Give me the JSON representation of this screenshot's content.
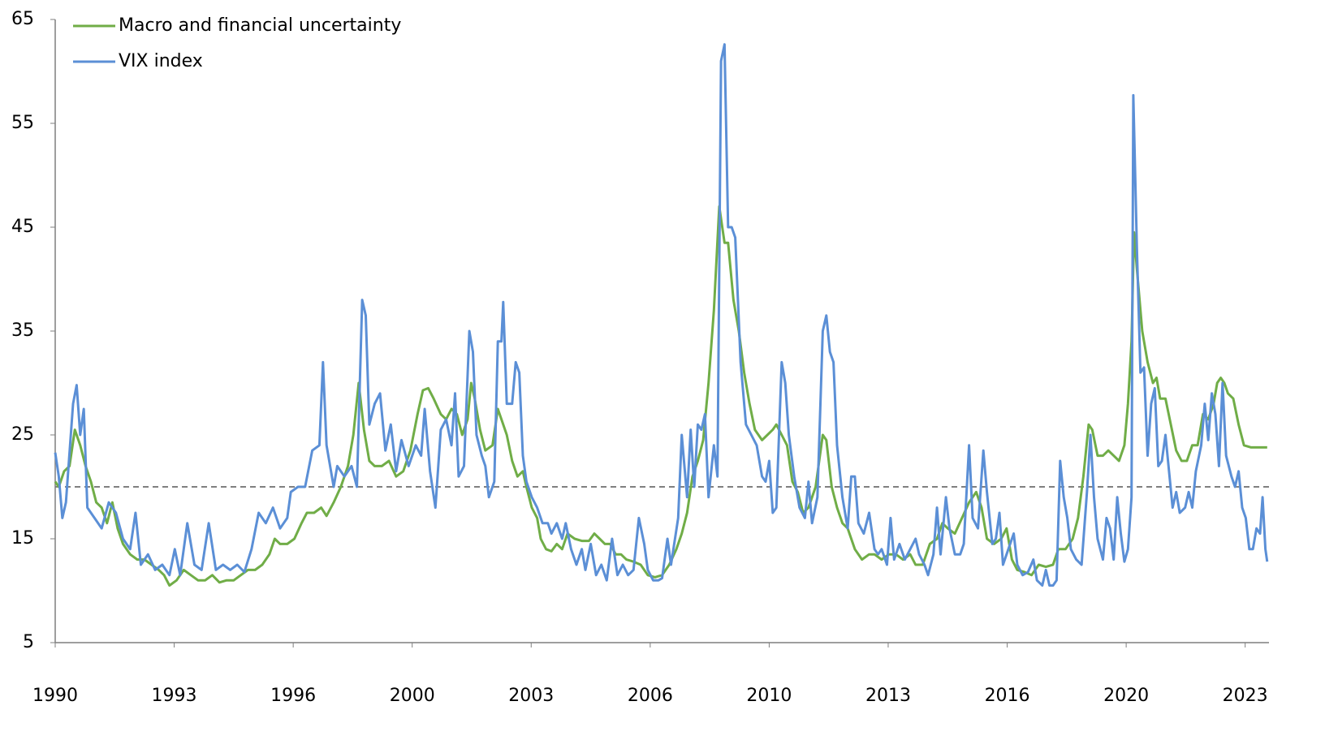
{
  "chart_data": {
    "type": "line",
    "xlim": [
      1990,
      2024
    ],
    "ylim": [
      5,
      65
    ],
    "yticks": [
      5,
      15,
      25,
      35,
      45,
      55,
      65
    ],
    "xticks": [
      1990,
      {
        "value": 1993.333,
        "label": "1993"
      },
      {
        "value": 1996.667,
        "label": "1996"
      },
      2000,
      {
        "value": 2003.333,
        "label": "2003"
      },
      {
        "value": 2006.667,
        "label": "2006"
      },
      2010,
      {
        "value": 2013.333,
        "label": "2013"
      },
      {
        "value": 2016.667,
        "label": "2016"
      },
      2020,
      {
        "value": 2023.333,
        "label": "2023"
      }
    ],
    "reference_line": 20,
    "legend": "top-left",
    "series": [
      {
        "name": "Macro and financial uncertainty",
        "color": "#70ad47",
        "x": [
          1990.0,
          1990.1,
          1990.25,
          1990.4,
          1990.55,
          1990.7,
          1990.85,
          1991.0,
          1991.15,
          1991.3,
          1991.45,
          1991.6,
          1991.75,
          1991.9,
          1992.1,
          1992.3,
          1992.5,
          1992.7,
          1992.9,
          1993.05,
          1993.2,
          1993.4,
          1993.6,
          1993.8,
          1994.0,
          1994.2,
          1994.4,
          1994.6,
          1994.8,
          1995.0,
          1995.2,
          1995.4,
          1995.6,
          1995.8,
          1996.0,
          1996.15,
          1996.3,
          1996.5,
          1996.7,
          1996.9,
          1997.05,
          1997.25,
          1997.45,
          1997.6,
          1997.8,
          1998.0,
          1998.2,
          1998.35,
          1998.5,
          1998.65,
          1998.8,
          1998.95,
          1999.15,
          1999.35,
          1999.55,
          1999.75,
          1999.95,
          2000.15,
          2000.3,
          2000.45,
          2000.6,
          2000.8,
          2000.95,
          2001.1,
          2001.25,
          2001.4,
          2001.55,
          2001.65,
          2001.75,
          2001.9,
          2002.05,
          2002.25,
          2002.4,
          2002.5,
          2002.65,
          2002.8,
          2002.95,
          2003.1,
          2003.2,
          2003.35,
          2003.5,
          2003.6,
          2003.75,
          2003.9,
          2004.05,
          2004.2,
          2004.35,
          2004.55,
          2004.75,
          2004.95,
          2005.1,
          2005.25,
          2005.4,
          2005.55,
          2005.7,
          2005.85,
          2006.0,
          2006.2,
          2006.4,
          2006.6,
          2006.8,
          2007.0,
          2007.2,
          2007.4,
          2007.55,
          2007.7,
          2007.85,
          2008.0,
          2008.15,
          2008.3,
          2008.45,
          2008.6,
          2008.75,
          2008.85,
          2009.0,
          2009.15,
          2009.3,
          2009.45,
          2009.6,
          2009.8,
          2009.95,
          2010.1,
          2010.2,
          2010.35,
          2010.5,
          2010.65,
          2010.8,
          2010.95,
          2011.1,
          2011.3,
          2011.5,
          2011.6,
          2011.75,
          2011.9,
          2012.05,
          2012.2,
          2012.4,
          2012.6,
          2012.8,
          2012.95,
          2013.15,
          2013.35,
          2013.55,
          2013.75,
          2013.95,
          2014.1,
          2014.3,
          2014.5,
          2014.7,
          2014.85,
          2015.0,
          2015.2,
          2015.4,
          2015.6,
          2015.8,
          2015.95,
          2016.1,
          2016.3,
          2016.5,
          2016.65,
          2016.8,
          2016.95,
          2017.15,
          2017.35,
          2017.55,
          2017.75,
          2017.95,
          2018.1,
          2018.3,
          2018.5,
          2018.65,
          2018.8,
          2018.95,
          2019.05,
          2019.2,
          2019.35,
          2019.5,
          2019.65,
          2019.8,
          2019.95,
          2020.05,
          2020.15,
          2020.22,
          2020.3,
          2020.45,
          2020.6,
          2020.75,
          2020.85,
          2020.95,
          2021.1,
          2021.25,
          2021.4,
          2021.55,
          2021.7,
          2021.85,
          2022.0,
          2022.15,
          2022.3,
          2022.45,
          2022.55,
          2022.65,
          2022.75,
          2022.85,
          2023.0,
          2023.15,
          2023.3,
          2023.5,
          2023.95
        ],
        "values": [
          20.5,
          20,
          21.5,
          22,
          25.5,
          24,
          22,
          20.5,
          18.5,
          18,
          16.5,
          18.5,
          16,
          14.5,
          13.5,
          13,
          13,
          12.5,
          12,
          11.5,
          10.5,
          11,
          12,
          11.5,
          11,
          11,
          11.5,
          10.8,
          11,
          11,
          11.5,
          12,
          12,
          12.5,
          13.5,
          15,
          14.5,
          14.5,
          15,
          16.5,
          17.5,
          17.5,
          18,
          17.2,
          18.5,
          20,
          22,
          25,
          30,
          25.5,
          22.5,
          22,
          22,
          22.5,
          21,
          21.5,
          23.5,
          27,
          29.3,
          29.5,
          28.5,
          27,
          26.5,
          27.5,
          27,
          25,
          26.5,
          30,
          28.5,
          25.5,
          23.5,
          24,
          27.5,
          26.5,
          25,
          22.5,
          21,
          21.5,
          20,
          18,
          17,
          15,
          14,
          13.8,
          14.5,
          14,
          15.5,
          15,
          14.8,
          14.8,
          15.5,
          15,
          14.5,
          14.5,
          13.5,
          13.5,
          13,
          12.8,
          12.5,
          11.5,
          11.3,
          11.5,
          12.5,
          14,
          15.5,
          17.5,
          21,
          22.5,
          24.5,
          30,
          37,
          47,
          43.5,
          43.5,
          38,
          35,
          31,
          28,
          25.5,
          24.5,
          25,
          25.5,
          26,
          25,
          24,
          20.5,
          19.5,
          17.5,
          18,
          20,
          25,
          24.5,
          20,
          18,
          16.5,
          16,
          14,
          13,
          13.5,
          13.5,
          13,
          13.5,
          13.5,
          13,
          13.5,
          12.5,
          12.5,
          14.5,
          15,
          16.5,
          16,
          15.5,
          17,
          18.5,
          19.5,
          18,
          15,
          14.5,
          15,
          16,
          13,
          12,
          11.8,
          11.5,
          12.5,
          12.3,
          12.5,
          14,
          14,
          15,
          17,
          21,
          26,
          25.5,
          23,
          23,
          23.5,
          23,
          22.5,
          24,
          28,
          34,
          44.5,
          41,
          35,
          32,
          30,
          30.5,
          28.5,
          28.5,
          26,
          23.5,
          22.5,
          22.5,
          24,
          24,
          27,
          26.5,
          28,
          30,
          30.5,
          30,
          29,
          28.5,
          26,
          24,
          23.8,
          23.8
        ]
      },
      {
        "name": "VIX index",
        "color": "#5b8fd6",
        "x": [
          1990.0,
          1990.1,
          1990.2,
          1990.3,
          1990.5,
          1990.6,
          1990.7,
          1990.8,
          1990.9,
          1991.1,
          1991.3,
          1991.5,
          1991.7,
          1991.9,
          1992.1,
          1992.25,
          1992.4,
          1992.6,
          1992.8,
          1993.0,
          1993.2,
          1993.35,
          1993.5,
          1993.7,
          1993.9,
          1994.1,
          1994.3,
          1994.5,
          1994.7,
          1994.9,
          1995.1,
          1995.3,
          1995.5,
          1995.7,
          1995.9,
          1996.1,
          1996.3,
          1996.5,
          1996.6,
          1996.8,
          1997.0,
          1997.2,
          1997.4,
          1997.5,
          1997.6,
          1997.8,
          1997.9,
          1998.1,
          1998.3,
          1998.45,
          1998.6,
          1998.7,
          1998.8,
          1998.95,
          1999.1,
          1999.25,
          1999.4,
          1999.55,
          1999.7,
          1999.9,
          2000.1,
          2000.25,
          2000.35,
          2000.5,
          2000.65,
          2000.8,
          2000.95,
          2001.1,
          2001.2,
          2001.3,
          2001.45,
          2001.6,
          2001.7,
          2001.8,
          2001.95,
          2002.05,
          2002.15,
          2002.3,
          2002.4,
          2002.5,
          2002.55,
          2002.65,
          2002.8,
          2002.9,
          2003.0,
          2003.1,
          2003.2,
          2003.35,
          2003.5,
          2003.65,
          2003.8,
          2003.9,
          2004.05,
          2004.2,
          2004.3,
          2004.45,
          2004.6,
          2004.75,
          2004.85,
          2005.0,
          2005.15,
          2005.3,
          2005.45,
          2005.6,
          2005.75,
          2005.9,
          2006.05,
          2006.2,
          2006.35,
          2006.5,
          2006.6,
          2006.75,
          2006.9,
          2007.0,
          2007.15,
          2007.25,
          2007.45,
          2007.55,
          2007.7,
          2007.8,
          2007.9,
          2008.0,
          2008.1,
          2008.2,
          2008.3,
          2008.45,
          2008.55,
          2008.65,
          2008.75,
          2008.85,
          2008.95,
          2009.05,
          2009.2,
          2009.35,
          2009.5,
          2009.65,
          2009.8,
          2009.9,
          2010.0,
          2010.1,
          2010.2,
          2010.35,
          2010.45,
          2010.55,
          2010.7,
          2010.85,
          2011.0,
          2011.1,
          2011.2,
          2011.35,
          2011.5,
          2011.6,
          2011.7,
          2011.8,
          2011.9,
          2012.05,
          2012.2,
          2012.3,
          2012.4,
          2012.5,
          2012.65,
          2012.8,
          2012.95,
          2013.05,
          2013.15,
          2013.3,
          2013.4,
          2013.5,
          2013.65,
          2013.8,
          2013.95,
          2014.1,
          2014.2,
          2014.35,
          2014.45,
          2014.6,
          2014.7,
          2014.8,
          2014.95,
          2015.05,
          2015.2,
          2015.35,
          2015.45,
          2015.6,
          2015.7,
          2015.85,
          2016.0,
          2016.1,
          2016.25,
          2016.35,
          2016.45,
          2016.55,
          2016.7,
          2016.85,
          2016.95,
          2017.1,
          2017.25,
          2017.4,
          2017.5,
          2017.65,
          2017.75,
          2017.85,
          2017.95,
          2018.05,
          2018.15,
          2018.25,
          2018.35,
          2018.45,
          2018.6,
          2018.75,
          2018.9,
          2019.0,
          2019.1,
          2019.2,
          2019.35,
          2019.45,
          2019.55,
          2019.65,
          2019.75,
          2019.85,
          2019.95,
          2020.05,
          2020.15,
          2020.2,
          2020.3,
          2020.4,
          2020.5,
          2020.6,
          2020.7,
          2020.8,
          2020.9,
          2021.0,
          2021.1,
          2021.2,
          2021.3,
          2021.4,
          2021.5,
          2021.65,
          2021.75,
          2021.85,
          2021.95,
          2022.1,
          2022.2,
          2022.3,
          2022.4,
          2022.5,
          2022.6,
          2022.7,
          2022.8,
          2022.95,
          2023.05,
          2023.15,
          2023.25,
          2023.35,
          2023.45,
          2023.55,
          2023.65,
          2023.75,
          2023.82,
          2023.9,
          2023.95
        ],
        "values": [
          23.3,
          21,
          17,
          18.5,
          28,
          29.8,
          25,
          27.5,
          18,
          17,
          16,
          18.5,
          17.5,
          15,
          14,
          17.5,
          12.5,
          13.5,
          12,
          12.5,
          11.5,
          14,
          11.5,
          16.5,
          12.5,
          12,
          16.5,
          12,
          12.5,
          12,
          12.5,
          11.8,
          14,
          17.5,
          16.5,
          18,
          16,
          17,
          19.5,
          20,
          20,
          23.5,
          24,
          32,
          24,
          20,
          22,
          21,
          22,
          20,
          38,
          36.5,
          26,
          28,
          29,
          23.5,
          26,
          21.5,
          24.5,
          22,
          24,
          23,
          27.5,
          21.5,
          18,
          25.5,
          26.5,
          24,
          29,
          21,
          22,
          35,
          33,
          25,
          23,
          22,
          19,
          20.5,
          34,
          34,
          37.8,
          28,
          28,
          32,
          31,
          23,
          20.5,
          19,
          18,
          16.5,
          16.5,
          15.5,
          16.5,
          15,
          16.5,
          14,
          12.5,
          14,
          12,
          14.5,
          11.5,
          12.5,
          11,
          15,
          11.5,
          12.5,
          11.5,
          12,
          17,
          14.5,
          12,
          11,
          11,
          11.2,
          15,
          12.5,
          17,
          25,
          19,
          25.5,
          20,
          26,
          25.5,
          27,
          19,
          24,
          21,
          61,
          62.6,
          45,
          45,
          44,
          32,
          26,
          25,
          24,
          21,
          20.5,
          22.5,
          17.5,
          18,
          32,
          30,
          25,
          21,
          18,
          17,
          20.5,
          16.5,
          19,
          35,
          36.5,
          33,
          32,
          24,
          19,
          16,
          21,
          21,
          16.5,
          15.5,
          17.5,
          14,
          13.5,
          14,
          12.5,
          17,
          13,
          14.5,
          13,
          14,
          15,
          13.5,
          12.5,
          11.5,
          13.5,
          18,
          13.5,
          19,
          16,
          13.5,
          13.5,
          14.5,
          24,
          17,
          16,
          23.5,
          19.5,
          14.5,
          15,
          17.5,
          12.5,
          14,
          15.5,
          12.5,
          11.5,
          11.8,
          13,
          11,
          10.5,
          12,
          10.5,
          10.5,
          11,
          22.5,
          19,
          17,
          14,
          13,
          12.5,
          19.5,
          25,
          19,
          15,
          13,
          17,
          16,
          13,
          19,
          15.5,
          12.8,
          14,
          19,
          57.7,
          43,
          31,
          31.5,
          23,
          28,
          29.5,
          22,
          22.5,
          25,
          21.5,
          18,
          19.5,
          17.5,
          18,
          19.5,
          18,
          21.5,
          24,
          28,
          24.5,
          29,
          27,
          22,
          30,
          23,
          21,
          20,
          21.5,
          18,
          17,
          14,
          14,
          16,
          15.5,
          19,
          14,
          12.8
        ]
      }
    ]
  }
}
